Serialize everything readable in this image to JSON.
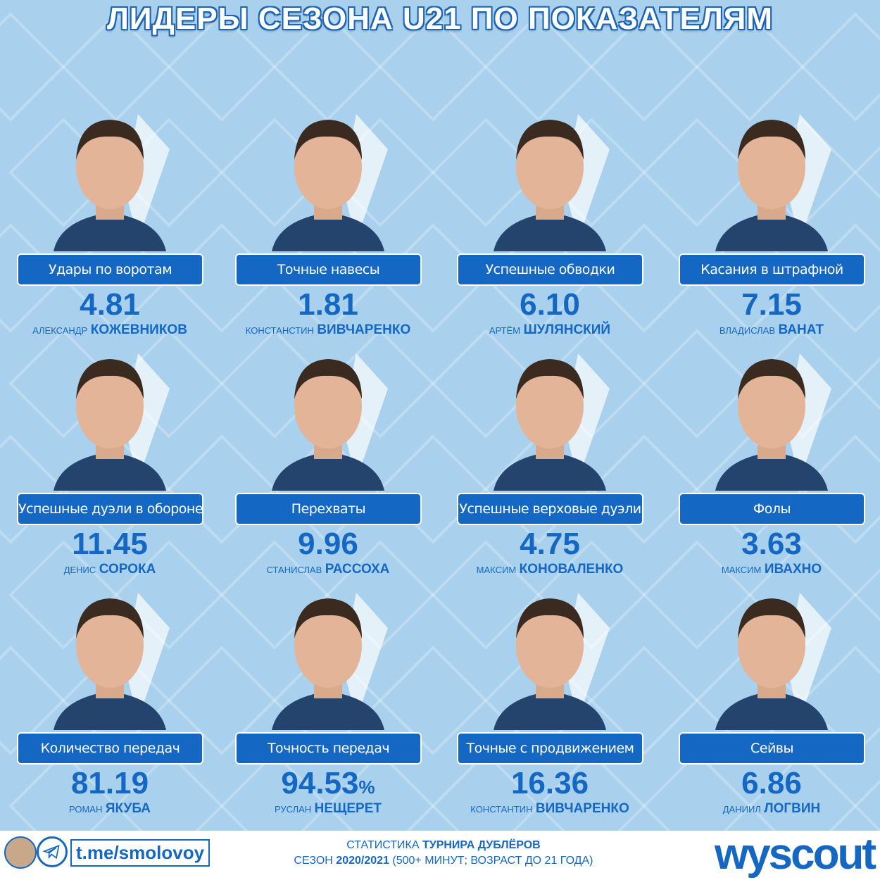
{
  "header": {
    "title": "ЛИДЕРЫ СЕЗОНА U21 ПО ПОКАЗАТЕЛЯМ"
  },
  "cards": [
    {
      "label": "Удары по воротам",
      "value": "4.81",
      "first_name": "АЛЕКСАНДР",
      "last_name": "КОЖЕВНИКОВ"
    },
    {
      "label": "Точные навесы",
      "value": "1.81",
      "first_name": "КОНСТАНСТИН",
      "last_name": "ВИВЧАРЕНКО"
    },
    {
      "label": "Успешные обводки",
      "value": "6.10",
      "first_name": "АРТЁМ",
      "last_name": "ШУЛЯНСКИЙ"
    },
    {
      "label": "Касания в штрафной",
      "value": "7.15",
      "first_name": "ВЛАДИСЛАВ",
      "last_name": "ВАНАТ"
    },
    {
      "label": "Успешные дуэли в обороне",
      "value": "11.45",
      "first_name": "ДЕНИС",
      "last_name": "СОРОКА"
    },
    {
      "label": "Перехваты",
      "value": "9.96",
      "first_name": "СТАНИСЛАВ",
      "last_name": "РАССОХА"
    },
    {
      "label": "Успешные верховые дуэли",
      "value": "4.75",
      "first_name": "МАКСИМ",
      "last_name": "КОНОВАЛЕНКО"
    },
    {
      "label": "Фолы",
      "value": "3.63",
      "first_name": "МАКСИМ",
      "last_name": "ИВАХНО"
    },
    {
      "label": "Количество передач",
      "value": "81.19",
      "first_name": "РОМАН",
      "last_name": "ЯКУБА"
    },
    {
      "label": "Точность передач",
      "value": "94.53",
      "unit": "%",
      "first_name": "РУСЛАН",
      "last_name": "НЕЩЕРЕТ"
    },
    {
      "label": "Точные с продвижением",
      "value": "16.36",
      "first_name": "КОНСТАНТИН",
      "last_name": "ВИВЧАРЕНКО"
    },
    {
      "label": "Сейвы",
      "value": "6.86",
      "first_name": "ДАНИИЛ",
      "last_name": "ЛОГВИН"
    }
  ],
  "footer": {
    "link": "t.me/smolovoy",
    "line1": [
      "СТАТИСТИКА",
      "ТУРНИРА ДУБЛЁРОВ"
    ],
    "line2": [
      "СЕЗОН",
      "2020/2021",
      "(500+ МИНУТ; ВОЗРАСТ ДО 21 ГОДА)"
    ],
    "brand": "wyscout"
  }
}
